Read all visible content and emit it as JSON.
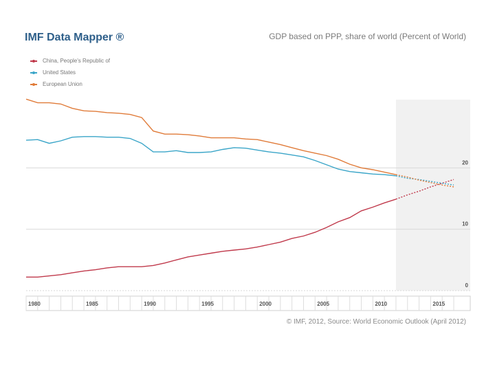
{
  "header": {
    "brand": "IMF Data Mapper ®",
    "title": "GDP based on PPP, share of world (Percent of World)"
  },
  "footer": {
    "source": "© IMF, 2012, Source: World Economic Outlook (April 2012)"
  },
  "colors": {
    "china": "#c0394b",
    "us": "#3aa5c8",
    "eu": "#e07b39",
    "projection_shade": "#f1f1f1",
    "grid": "#d9d9d9",
    "axis_band": "#eeeeee"
  },
  "chart_data": {
    "type": "line",
    "title": "GDP based on PPP, share of world (Percent of World)",
    "xlabel": "",
    "ylabel": "",
    "xlim": [
      1980,
      2017
    ],
    "ylim": [
      0,
      30
    ],
    "y_ticks": [
      0,
      10,
      20
    ],
    "x_ticks": [
      1980,
      1985,
      1990,
      1995,
      2000,
      2005,
      2010,
      2015
    ],
    "projection_start": 2012,
    "grid": true,
    "legend_position": "top-left",
    "series": [
      {
        "name": "China, People's Republic of",
        "key": "china",
        "x": [
          1980,
          1981,
          1982,
          1983,
          1984,
          1985,
          1986,
          1987,
          1988,
          1989,
          1990,
          1991,
          1992,
          1993,
          1994,
          1995,
          1996,
          1997,
          1998,
          1999,
          2000,
          2001,
          2002,
          2003,
          2004,
          2005,
          2006,
          2007,
          2008,
          2009,
          2010,
          2011,
          2012,
          2013,
          2014,
          2015,
          2016,
          2017
        ],
        "values": [
          2.2,
          2.2,
          2.4,
          2.6,
          2.9,
          3.2,
          3.4,
          3.7,
          3.9,
          3.9,
          3.9,
          4.1,
          4.5,
          5.0,
          5.5,
          5.8,
          6.1,
          6.4,
          6.6,
          6.8,
          7.1,
          7.5,
          7.9,
          8.5,
          8.9,
          9.5,
          10.3,
          11.2,
          11.9,
          13.0,
          13.6,
          14.3,
          14.9,
          15.6,
          16.2,
          16.9,
          17.5,
          18.1
        ]
      },
      {
        "name": "United States",
        "key": "us",
        "x": [
          1980,
          1981,
          1982,
          1983,
          1984,
          1985,
          1986,
          1987,
          1988,
          1989,
          1990,
          1991,
          1992,
          1993,
          1994,
          1995,
          1996,
          1997,
          1998,
          1999,
          2000,
          2001,
          2002,
          2003,
          2004,
          2005,
          2006,
          2007,
          2008,
          2009,
          2010,
          2011,
          2012,
          2013,
          2014,
          2015,
          2016,
          2017
        ],
        "values": [
          24.5,
          24.6,
          24.0,
          24.4,
          25.0,
          25.1,
          25.1,
          25.0,
          25.0,
          24.8,
          24.0,
          22.6,
          22.6,
          22.8,
          22.5,
          22.5,
          22.6,
          23.0,
          23.3,
          23.2,
          22.9,
          22.6,
          22.4,
          22.1,
          21.8,
          21.2,
          20.5,
          19.8,
          19.4,
          19.2,
          19.0,
          18.9,
          18.7,
          18.3,
          18.1,
          17.8,
          17.5,
          17.2
        ]
      },
      {
        "name": "European Union",
        "key": "eu",
        "x": [
          1980,
          1981,
          1982,
          1983,
          1984,
          1985,
          1986,
          1987,
          1988,
          1989,
          1990,
          1991,
          1992,
          1993,
          1994,
          1995,
          1996,
          1997,
          1998,
          1999,
          2000,
          2001,
          2002,
          2003,
          2004,
          2005,
          2006,
          2007,
          2008,
          2009,
          2010,
          2011,
          2012,
          2013,
          2014,
          2015,
          2016,
          2017
        ],
        "values": [
          31.2,
          30.6,
          30.6,
          30.4,
          29.7,
          29.3,
          29.2,
          29.0,
          28.9,
          28.7,
          28.2,
          26.0,
          25.5,
          25.5,
          25.4,
          25.2,
          24.9,
          24.9,
          24.9,
          24.7,
          24.6,
          24.2,
          23.8,
          23.3,
          22.8,
          22.4,
          22.0,
          21.4,
          20.6,
          20.0,
          19.7,
          19.3,
          18.9,
          18.5,
          18.0,
          17.6,
          17.2,
          16.9
        ]
      }
    ]
  }
}
